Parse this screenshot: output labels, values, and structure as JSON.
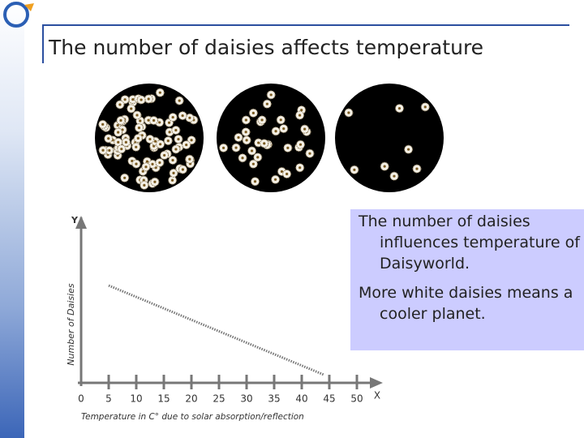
{
  "title": "The number of daisies affects temperature",
  "text_box": {
    "paragraphs": [
      "The number of daisies influences temperature of Daisyworld.",
      "More white daisies means a cooler planet."
    ]
  },
  "chart_data": {
    "type": "line",
    "x_label": "Temperature in C° due to solar absorption/reflection",
    "y_label": "Number of Daisies",
    "x_axis_letter": "X",
    "y_axis_letter": "Y",
    "xlim": [
      0,
      50
    ],
    "xticks": [
      0,
      5,
      10,
      15,
      20,
      25,
      30,
      35,
      40,
      45,
      50
    ],
    "ylim": [
      0,
      10
    ],
    "x": [
      5,
      44
    ],
    "series": [
      {
        "values": [
          6,
          0.5
        ],
        "color": "#777777"
      }
    ],
    "line_style": "dotted"
  }
}
